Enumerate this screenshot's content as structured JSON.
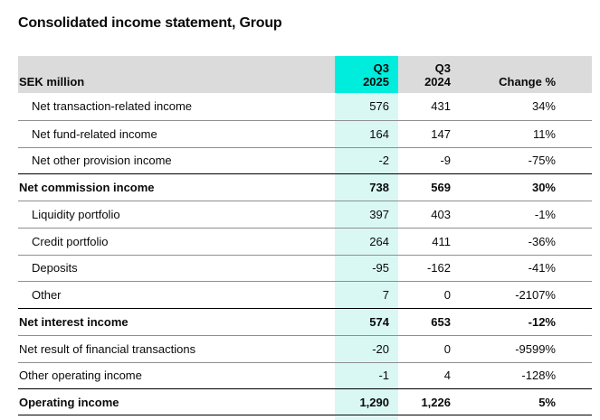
{
  "title": "Consolidated income statement, Group",
  "table": {
    "header": {
      "label": "SEK million",
      "col_2025": {
        "line1": "Q3",
        "line2": "2025"
      },
      "col_2024": {
        "line1": "Q3",
        "line2": "2024"
      },
      "change": "Change %"
    },
    "rows": [
      {
        "label": "Net transaction-related income",
        "indent": true,
        "bold": false,
        "q3_2025": "576",
        "q3_2024": "431",
        "change": "34%"
      },
      {
        "label": "Net fund-related income",
        "indent": true,
        "bold": false,
        "q3_2025": "164",
        "q3_2024": "147",
        "change": "11%"
      },
      {
        "label": "Net other provision income",
        "indent": true,
        "bold": false,
        "q3_2025": "-2",
        "q3_2024": "-9",
        "change": "-75%"
      },
      {
        "label": "Net commission income",
        "indent": false,
        "bold": true,
        "q3_2025": "738",
        "q3_2024": "569",
        "change": "30%"
      },
      {
        "label": "Liquidity portfolio",
        "indent": true,
        "bold": false,
        "q3_2025": "397",
        "q3_2024": "403",
        "change": "-1%"
      },
      {
        "label": "Credit portfolio",
        "indent": true,
        "bold": false,
        "q3_2025": "264",
        "q3_2024": "411",
        "change": "-36%"
      },
      {
        "label": "Deposits",
        "indent": true,
        "bold": false,
        "q3_2025": "-95",
        "q3_2024": "-162",
        "change": "-41%"
      },
      {
        "label": "Other",
        "indent": true,
        "bold": false,
        "q3_2025": "7",
        "q3_2024": "0",
        "change": "-2107%"
      },
      {
        "label": "Net interest income",
        "indent": false,
        "bold": true,
        "q3_2025": "574",
        "q3_2024": "653",
        "change": "-12%"
      },
      {
        "label": "Net result of financial transactions",
        "indent": false,
        "bold": false,
        "q3_2025": "-20",
        "q3_2024": "0",
        "change": "-9599%"
      },
      {
        "label": "Other operating income",
        "indent": false,
        "bold": false,
        "q3_2025": "-1",
        "q3_2024": "4",
        "change": "-128%"
      },
      {
        "label": "Operating income",
        "indent": false,
        "bold": true,
        "q3_2025": "1,290",
        "q3_2024": "1,226",
        "change": "5%"
      }
    ]
  },
  "colors": {
    "accent": "#00EDDE",
    "accent-light": "#D9F8F3",
    "header-bg": "#DBDBDB",
    "border-regular": "#8f8f8f",
    "border-strong": "#000000"
  }
}
